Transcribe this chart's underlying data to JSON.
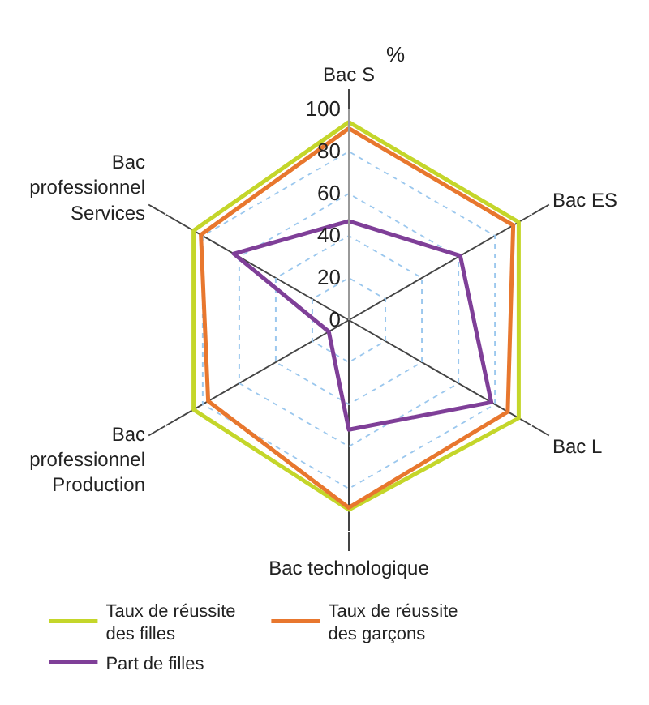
{
  "chart_data": {
    "type": "radar",
    "ylabel": "%",
    "categories": [
      "Bac S",
      "Bac ES",
      "Bac L",
      "Bac technologique",
      "Bac\nprofessionnel\nProduction",
      "Bac\nprofessionnel\nServices"
    ],
    "series": [
      {
        "name": "Taux de réussite\ndes filles",
        "color": "#c4d62a",
        "values": [
          94,
          93,
          93,
          90,
          85,
          85
        ]
      },
      {
        "name": "Taux de réussite\ndes garçons",
        "color": "#e8772e",
        "values": [
          91,
          90,
          87,
          89,
          77,
          81
        ]
      },
      {
        "name": "Part de filles",
        "color": "#7f3f98",
        "values": [
          47,
          61,
          78,
          52,
          11,
          63
        ]
      }
    ],
    "ylim": [
      0,
      100
    ],
    "yticks": [
      0,
      20,
      40,
      60,
      80,
      100
    ],
    "grid": true,
    "legend": "bottom",
    "marker": "none",
    "line_style": "solid"
  }
}
